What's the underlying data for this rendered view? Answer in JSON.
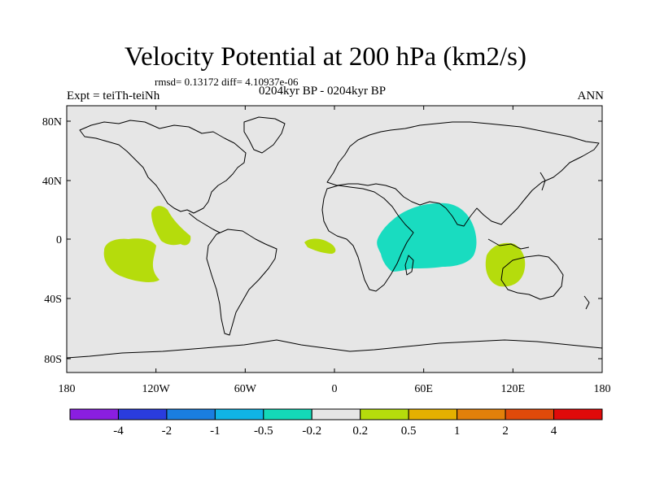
{
  "title": "Velocity Potential at 200 hPa (km2/s)",
  "stats": "rmsd= 0.13172 diff= 4.10937e-06",
  "expt": "Expt = teiTh-teiNh",
  "period": "0204kyr BP - 0204kyr BP",
  "season": "ANN",
  "map": {
    "x_ticks": [
      "180",
      "120W",
      "60W",
      "0",
      "60E",
      "120E",
      "180"
    ],
    "y_ticks": [
      "80N",
      "40N",
      "0",
      "40S",
      "80S"
    ]
  },
  "colorbar": {
    "labels": [
      "-4",
      "-2",
      "-1",
      "-0.5",
      "-0.2",
      "0.2",
      "0.5",
      "1",
      "2",
      "4"
    ],
    "colors": [
      "#8a1ee0",
      "#2a3cde",
      "#1a7ee0",
      "#10b4e6",
      "#14d9b8",
      "#e6e6e6",
      "#b5dc0c",
      "#e4b000",
      "#e2800a",
      "#e04a0a",
      "#e00a0a"
    ]
  },
  "anomaly_colors": {
    "positive": "#b5dc0c",
    "negative": "#19dcc0"
  }
}
